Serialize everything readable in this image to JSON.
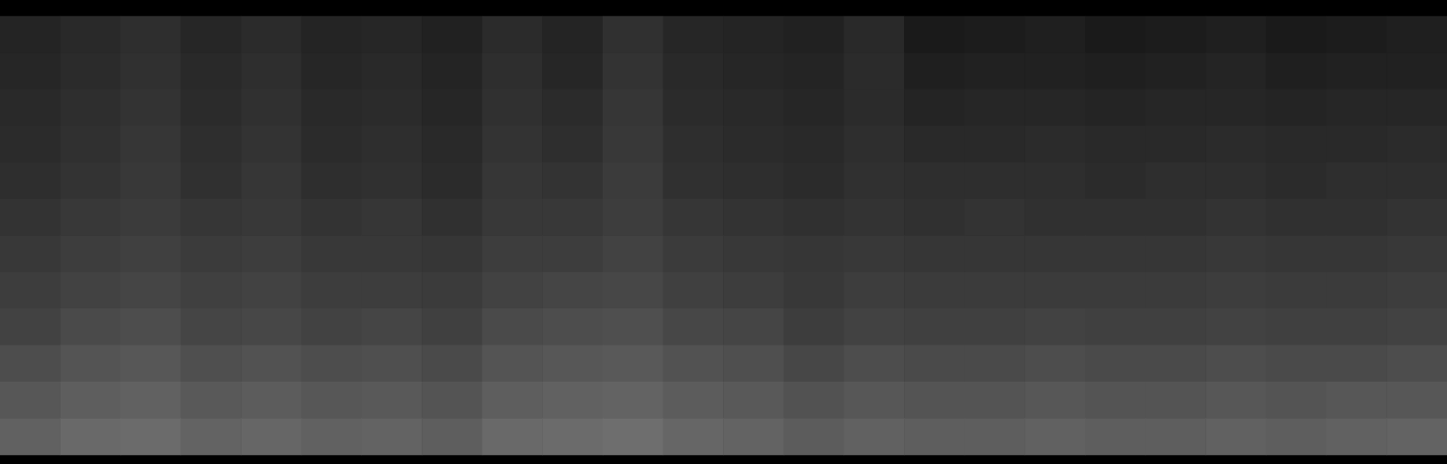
{
  "chart_data": {
    "type": "heatmap",
    "tick_labels": false,
    "grid": false,
    "colorbar_range": [
      0,
      1
    ],
    "colors": [
      "#000000",
      "#ffffff"
    ],
    "values": [
      [
        0.14,
        0.16,
        0.18,
        0.15,
        0.17,
        0.14,
        0.15,
        0.13,
        0.17,
        0.14,
        0.19,
        0.15,
        0.14,
        0.13,
        0.16,
        0.1,
        0.11,
        0.12,
        0.1,
        0.11,
        0.12,
        0.1,
        0.11,
        0.12
      ],
      [
        0.15,
        0.17,
        0.19,
        0.16,
        0.18,
        0.15,
        0.16,
        0.14,
        0.18,
        0.15,
        0.2,
        0.16,
        0.15,
        0.14,
        0.17,
        0.12,
        0.13,
        0.13,
        0.12,
        0.13,
        0.14,
        0.12,
        0.13,
        0.13
      ],
      [
        0.16,
        0.18,
        0.2,
        0.17,
        0.19,
        0.16,
        0.17,
        0.15,
        0.19,
        0.17,
        0.21,
        0.17,
        0.16,
        0.15,
        0.17,
        0.14,
        0.15,
        0.15,
        0.14,
        0.15,
        0.15,
        0.14,
        0.15,
        0.15
      ],
      [
        0.17,
        0.19,
        0.21,
        0.18,
        0.2,
        0.17,
        0.18,
        0.16,
        0.2,
        0.18,
        0.22,
        0.18,
        0.17,
        0.16,
        0.18,
        0.16,
        0.16,
        0.17,
        0.16,
        0.16,
        0.17,
        0.16,
        0.16,
        0.17
      ],
      [
        0.18,
        0.2,
        0.22,
        0.19,
        0.21,
        0.18,
        0.19,
        0.17,
        0.21,
        0.2,
        0.23,
        0.19,
        0.18,
        0.17,
        0.19,
        0.18,
        0.18,
        0.18,
        0.17,
        0.18,
        0.18,
        0.17,
        0.18,
        0.18
      ],
      [
        0.2,
        0.22,
        0.23,
        0.21,
        0.22,
        0.2,
        0.21,
        0.19,
        0.22,
        0.22,
        0.24,
        0.21,
        0.2,
        0.19,
        0.2,
        0.19,
        0.2,
        0.19,
        0.19,
        0.19,
        0.2,
        0.19,
        0.19,
        0.2
      ],
      [
        0.22,
        0.24,
        0.25,
        0.23,
        0.24,
        0.22,
        0.22,
        0.21,
        0.24,
        0.24,
        0.26,
        0.23,
        0.22,
        0.21,
        0.22,
        0.21,
        0.21,
        0.21,
        0.21,
        0.21,
        0.22,
        0.21,
        0.21,
        0.22
      ],
      [
        0.24,
        0.26,
        0.27,
        0.25,
        0.26,
        0.24,
        0.24,
        0.23,
        0.26,
        0.27,
        0.28,
        0.25,
        0.24,
        0.22,
        0.24,
        0.23,
        0.23,
        0.23,
        0.23,
        0.23,
        0.24,
        0.23,
        0.23,
        0.24
      ],
      [
        0.26,
        0.29,
        0.3,
        0.27,
        0.28,
        0.26,
        0.27,
        0.25,
        0.29,
        0.3,
        0.31,
        0.28,
        0.27,
        0.24,
        0.26,
        0.25,
        0.25,
        0.26,
        0.25,
        0.25,
        0.26,
        0.25,
        0.25,
        0.26
      ],
      [
        0.3,
        0.33,
        0.34,
        0.31,
        0.32,
        0.3,
        0.31,
        0.29,
        0.33,
        0.34,
        0.35,
        0.32,
        0.31,
        0.28,
        0.3,
        0.29,
        0.29,
        0.3,
        0.29,
        0.29,
        0.3,
        0.29,
        0.29,
        0.3
      ],
      [
        0.34,
        0.37,
        0.38,
        0.35,
        0.36,
        0.34,
        0.35,
        0.33,
        0.37,
        0.38,
        0.39,
        0.36,
        0.35,
        0.32,
        0.34,
        0.33,
        0.33,
        0.34,
        0.33,
        0.33,
        0.34,
        0.33,
        0.34,
        0.34
      ],
      [
        0.38,
        0.41,
        0.42,
        0.39,
        0.4,
        0.38,
        0.39,
        0.37,
        0.41,
        0.42,
        0.43,
        0.4,
        0.39,
        0.36,
        0.38,
        0.37,
        0.37,
        0.38,
        0.37,
        0.37,
        0.38,
        0.37,
        0.38,
        0.39
      ]
    ]
  }
}
